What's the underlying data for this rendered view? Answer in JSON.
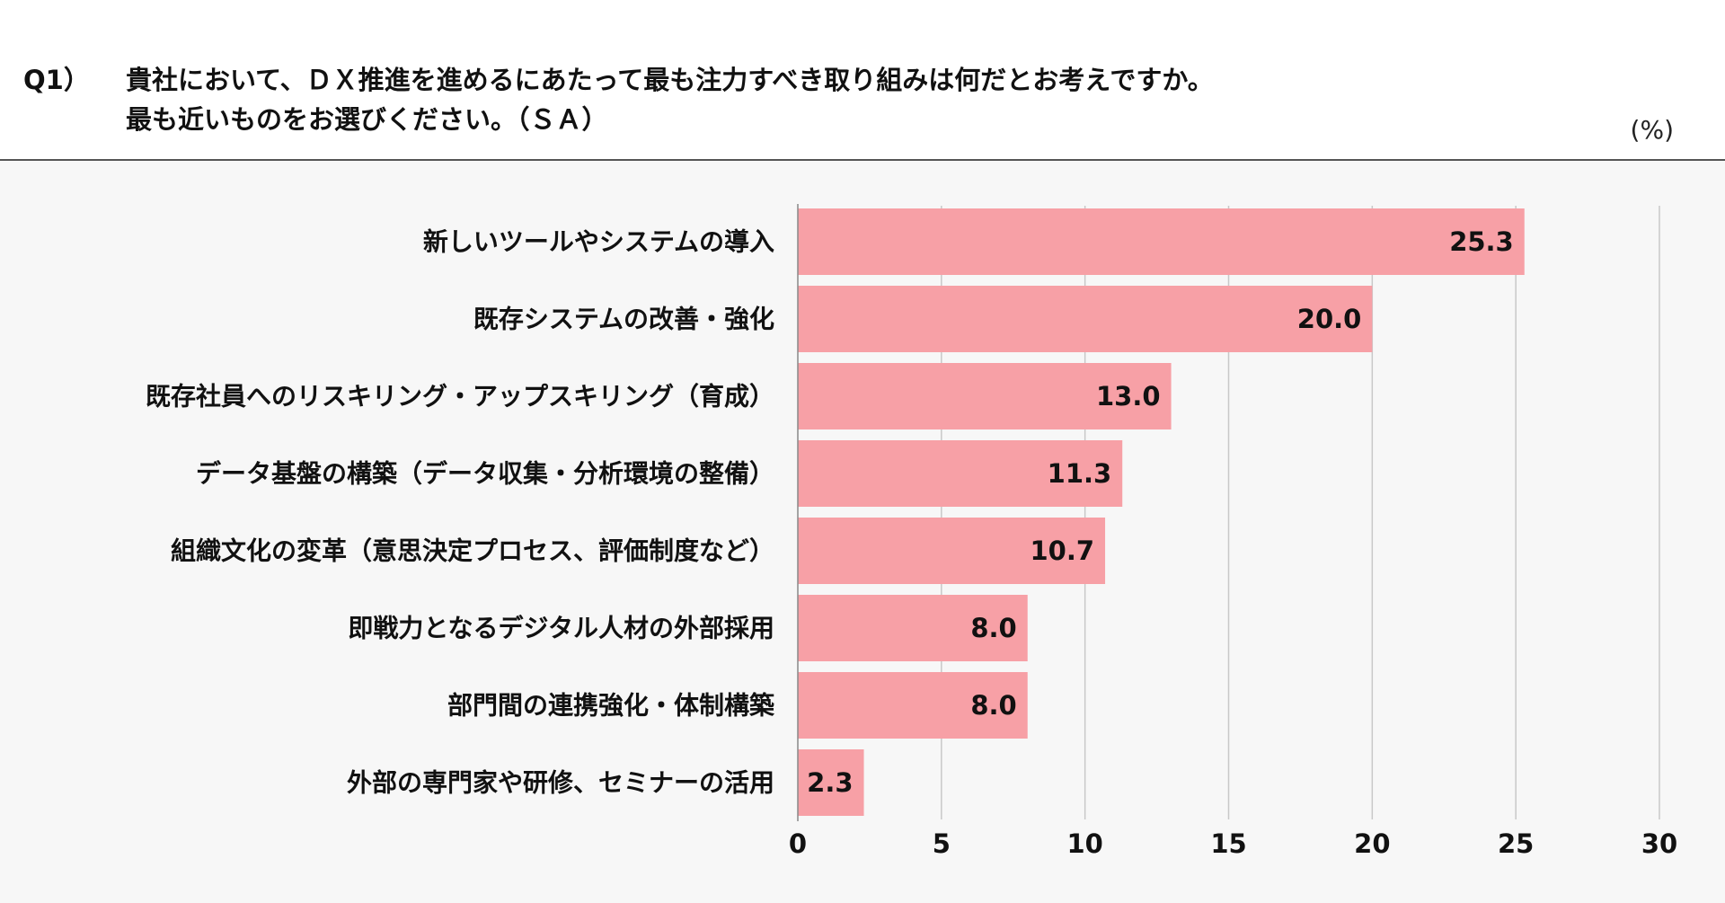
{
  "question": {
    "number": "Q1）",
    "line1": "貴社において、ＤＸ推進を進めるにあたって最も注力すべき取り組みは何だとお考えですか。",
    "line2": "最も近いものをお選びください。（ＳＡ）"
  },
  "unit_label": "(%)",
  "colors": {
    "bar": "#f7a0a6",
    "grid": "#c8c8c8",
    "axis": "#888888",
    "background": "#f7f7f7"
  },
  "chart_data": {
    "type": "bar",
    "orientation": "horizontal",
    "categories": [
      "新しいツールやシステムの導入",
      "既存システムの改善・強化",
      "既存社員へのリスキリング・アップスキリング（育成）",
      "データ基盤の構築（データ収集・分析環境の整備）",
      "組織文化の変革（意思決定プロセス、評価制度など）",
      "即戦力となるデジタル人材の外部採用",
      "部門間の連携強化・体制構築",
      "外部の専門家や研修、セミナーの活用"
    ],
    "values": [
      25.3,
      20.0,
      13.0,
      11.3,
      10.7,
      8.0,
      8.0,
      2.3
    ],
    "value_labels": [
      "25.3",
      "20.0",
      "13.0",
      "11.3",
      "10.7",
      "8.0",
      "8.0",
      "2.3"
    ],
    "xlim": [
      0,
      30
    ],
    "xticks": [
      0,
      5,
      10,
      15,
      20,
      25,
      30
    ],
    "grid": true
  }
}
